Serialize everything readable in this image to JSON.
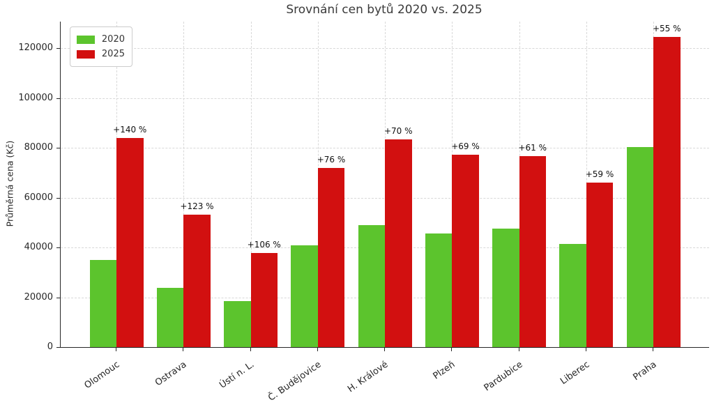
{
  "chart_data": {
    "type": "bar",
    "title": "Srovnání cen bytů 2020 vs. 2025",
    "ylabel": "Průměrná cena (Kč)",
    "categories": [
      "Olomouc",
      "Ostrava",
      "Ústí n. L.",
      "Č. Budějovice",
      "H. Králové",
      "Plzeň",
      "Pardubice",
      "Liberec",
      "Praha"
    ],
    "series": [
      {
        "name": "2020",
        "color": "#5cc42d",
        "values": [
          35000,
          23800,
          18400,
          40800,
          49000,
          45700,
          47700,
          41500,
          80300
        ]
      },
      {
        "name": "2025",
        "color": "#d21010",
        "values": [
          84000,
          53100,
          37900,
          71800,
          83300,
          77200,
          76800,
          66000,
          124500
        ]
      }
    ],
    "annotations": [
      "+140 %",
      "+123 %",
      "+106 %",
      "+76 %",
      "+70 %",
      "+69 %",
      "+61 %",
      "+59 %",
      "+55 %"
    ],
    "yticks": [
      0,
      20000,
      40000,
      60000,
      80000,
      100000,
      120000
    ],
    "ylim": [
      0,
      130700
    ],
    "grid": "dashed",
    "legend_position": "upper-left",
    "legend_entries": [
      "2020",
      "2025"
    ]
  }
}
